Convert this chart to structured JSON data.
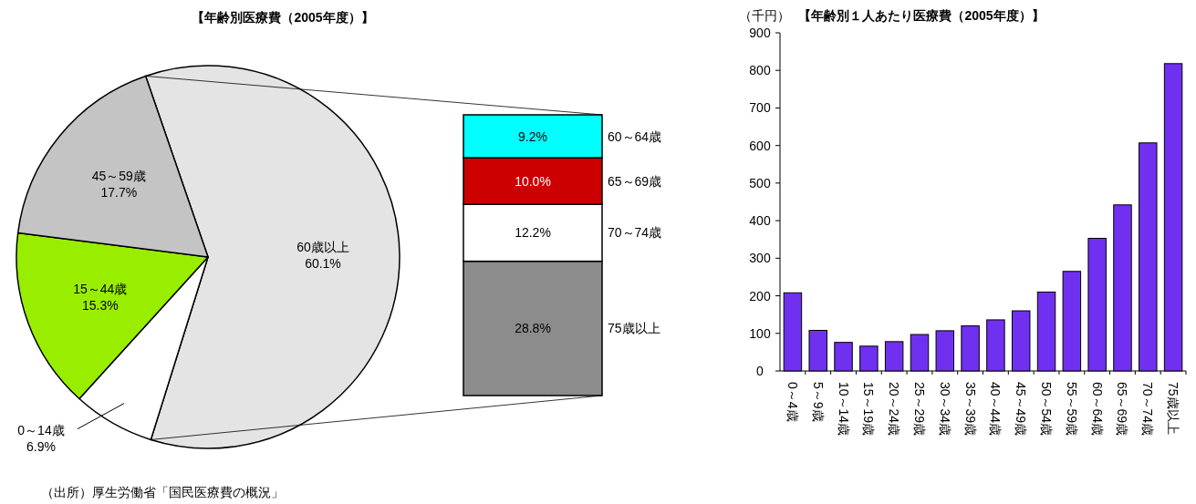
{
  "chart_data": [
    {
      "type": "pie",
      "title": "【年齢別医療費（2005年度）】",
      "categories": [
        "60歳以上",
        "0～14歳",
        "15～44歳",
        "45～59歳"
      ],
      "values": [
        60.1,
        6.9,
        15.3,
        17.7
      ],
      "value_labels": [
        "60.1%",
        "6.9%",
        "15.3%",
        "17.7%"
      ],
      "colors": [
        "#e4e4e4",
        "#ffffff",
        "#99ee00",
        "#c4c4c4"
      ],
      "annotations": [
        "（出所）厚生労働省「国民医療費の概況」"
      ]
    },
    {
      "type": "bar",
      "stacked": true,
      "categories": [
        null
      ],
      "series": [
        {
          "name": "75歳以上",
          "color": "#8c8c8c",
          "values": [
            28.8
          ],
          "value_labels": [
            "28.8%"
          ]
        },
        {
          "name": "70～74歳",
          "color": "#ffffff",
          "values": [
            12.2
          ],
          "value_labels": [
            "12.2%"
          ]
        },
        {
          "name": "65～69歳",
          "color": "#cc0000",
          "values": [
            10.0
          ],
          "value_labels": [
            "10.0%"
          ]
        },
        {
          "name": "60～64歳",
          "color": "#00ffff",
          "values": [
            9.2
          ],
          "value_labels": [
            "9.2%"
          ]
        }
      ]
    },
    {
      "type": "bar",
      "title": "【年齢別１人あたり医療費（2005年度）】",
      "ylabel": "（千円）",
      "categories": [
        "0～4歳",
        "5～9歳",
        "10～14歳",
        "15～19歳",
        "20～24歳",
        "25～29歳",
        "30～34歳",
        "35～39歳",
        "40～44歳",
        "45～49歳",
        "50～54歳",
        "55～59歳",
        "60～64歳",
        "65～69歳",
        "70～74歳",
        "75歳以上"
      ],
      "values": [
        208,
        108,
        76,
        66,
        78,
        97,
        107,
        120,
        136,
        160,
        210,
        265,
        353,
        442,
        607,
        818
      ],
      "color": "#7030f0",
      "ylim": [
        0,
        900
      ],
      "yticks": [
        0,
        100,
        200,
        300,
        400,
        500,
        600,
        700,
        800,
        900
      ]
    }
  ]
}
